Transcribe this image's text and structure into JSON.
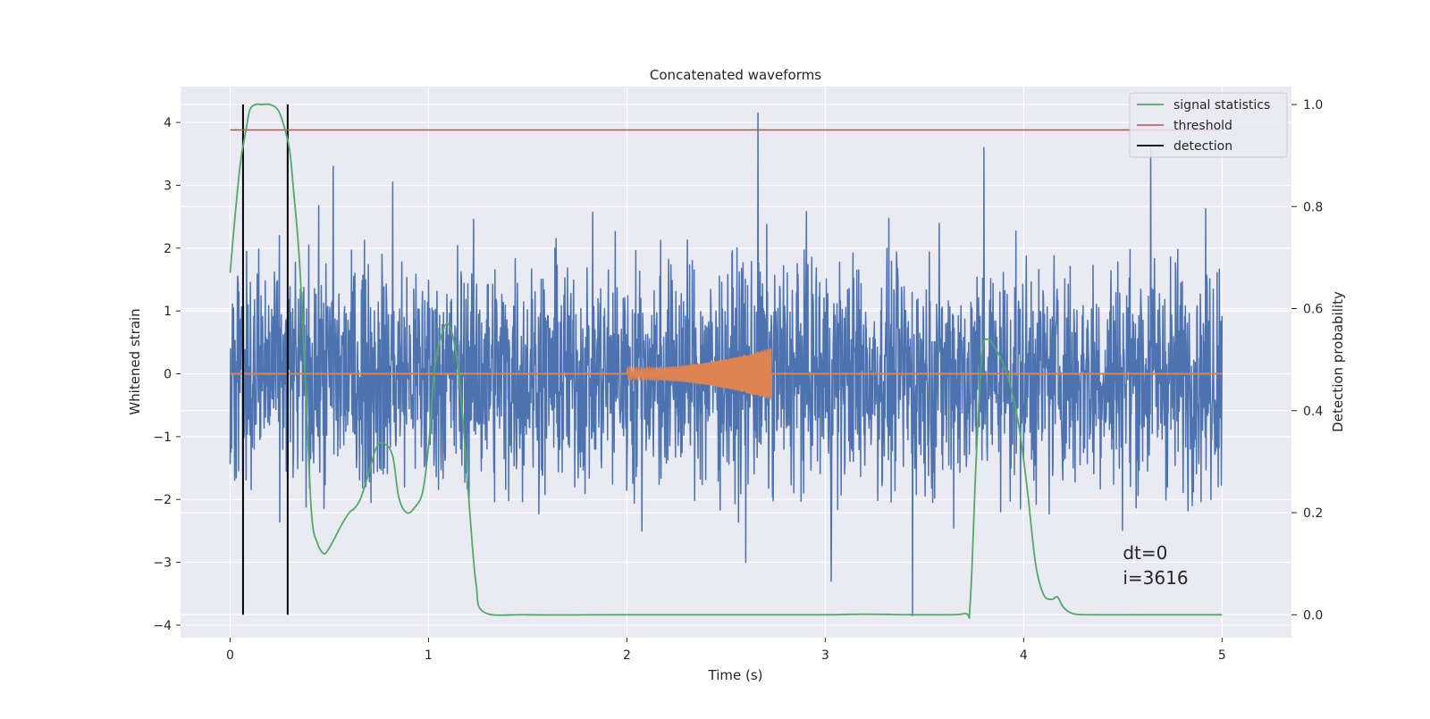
{
  "chart_data": {
    "type": "line",
    "title": "Concatenated waveforms",
    "xlabel": "Time (s)",
    "ylabel": "Whitened strain",
    "y2label": "Detection probability",
    "xlim": [
      -0.25,
      5.35
    ],
    "ylim": [
      -4.2,
      4.57
    ],
    "y2lim": [
      -0.045,
      1.035
    ],
    "xticks": [
      0,
      1,
      2,
      3,
      4,
      5
    ],
    "yticks": [
      -4,
      -3,
      -2,
      -1,
      0,
      1,
      2,
      3,
      4
    ],
    "y2ticks": [
      0.0,
      0.2,
      0.4,
      0.6,
      0.8,
      1.0
    ],
    "xtick_labels": [
      "0",
      "1",
      "2",
      "3",
      "4",
      "5"
    ],
    "ytick_labels": [
      "−4",
      "−3",
      "−2",
      "−1",
      "0",
      "1",
      "2",
      "3",
      "4"
    ],
    "y2tick_labels": [
      "0.0",
      "0.2",
      "0.4",
      "0.6",
      "0.8",
      "1.0"
    ],
    "grid": true,
    "legend_position": "top-right",
    "colors": {
      "strain": "#4c72b0",
      "template": "#dd8452",
      "signal_statistics": "#55a868",
      "threshold": "#c44e52",
      "detection": "#000000",
      "axes_bg": "#eaeaf2",
      "grid": "#ffffff"
    },
    "legend": [
      {
        "label": "signal statistics",
        "color": "#55a868"
      },
      {
        "label": "threshold",
        "color": "#c44e52"
      },
      {
        "label": "detection",
        "color": "#000000"
      }
    ],
    "strain_noise": {
      "x_range": [
        0,
        5
      ],
      "typical_amplitude": 1.0,
      "peak_amplitude_range": [
        -3.9,
        4.2
      ],
      "notable_spikes": [
        {
          "x": 2.66,
          "y": 4.15
        },
        {
          "x": 3.44,
          "y": -3.85
        },
        {
          "x": 3.8,
          "y": 3.6
        },
        {
          "x": 4.64,
          "y": 3.6
        },
        {
          "x": 0.52,
          "y": 3.3
        },
        {
          "x": 0.82,
          "y": 3.05
        },
        {
          "x": 2.6,
          "y": -3.0
        },
        {
          "x": 3.03,
          "y": -3.3
        }
      ]
    },
    "template_signal": {
      "x_range": [
        2.0,
        2.73
      ],
      "amplitude_start": 0.09,
      "amplitude_end": 0.42,
      "baseline_x_range": [
        0,
        5
      ]
    },
    "series": [
      {
        "name": "signal statistics",
        "axis": "right",
        "x": [
          0.0,
          0.02,
          0.05,
          0.08,
          0.1,
          0.13,
          0.16,
          0.2,
          0.24,
          0.27,
          0.3,
          0.32,
          0.35,
          0.38,
          0.41,
          0.44,
          0.47,
          0.49,
          0.52,
          0.56,
          0.6,
          0.63,
          0.66,
          0.7,
          0.74,
          0.78,
          0.82,
          0.85,
          0.89,
          0.93,
          0.97,
          1.0,
          1.03,
          1.06,
          1.09,
          1.12,
          1.15,
          1.18,
          1.21,
          1.24,
          1.28,
          1.5,
          2.0,
          2.5,
          3.0,
          3.2,
          3.5,
          3.7,
          3.73,
          3.76,
          3.79,
          3.82,
          3.86,
          3.9,
          3.94,
          3.98,
          4.02,
          4.06,
          4.1,
          4.14,
          4.17,
          4.2,
          4.25,
          4.35,
          4.6,
          5.0
        ],
        "y": [
          0.67,
          0.76,
          0.88,
          0.95,
          0.99,
          1.0,
          1.0,
          1.0,
          0.99,
          0.96,
          0.91,
          0.83,
          0.69,
          0.45,
          0.2,
          0.14,
          0.12,
          0.125,
          0.145,
          0.175,
          0.2,
          0.21,
          0.23,
          0.28,
          0.33,
          0.335,
          0.31,
          0.23,
          0.2,
          0.21,
          0.24,
          0.33,
          0.48,
          0.54,
          0.57,
          0.55,
          0.48,
          0.35,
          0.19,
          0.06,
          0.005,
          0.0,
          0.0,
          0.0,
          0.0,
          0.001,
          0.0,
          0.002,
          0.02,
          0.3,
          0.51,
          0.54,
          0.52,
          0.49,
          0.44,
          0.36,
          0.24,
          0.1,
          0.04,
          0.03,
          0.035,
          0.015,
          0.002,
          0.0,
          0.0,
          0.0
        ]
      },
      {
        "name": "threshold",
        "axis": "right",
        "x": [
          0,
          5
        ],
        "y": [
          0.95,
          0.95
        ]
      },
      {
        "name": "detection",
        "axis": "right",
        "type": "vlines",
        "x": [
          0.065,
          0.29
        ],
        "y_range": [
          0.0,
          1.0
        ]
      }
    ],
    "annotations": [
      {
        "text": "dt=0",
        "x": 4.5,
        "y": -2.95
      },
      {
        "text": "i=3616",
        "x": 4.5,
        "y": -3.35
      }
    ]
  }
}
